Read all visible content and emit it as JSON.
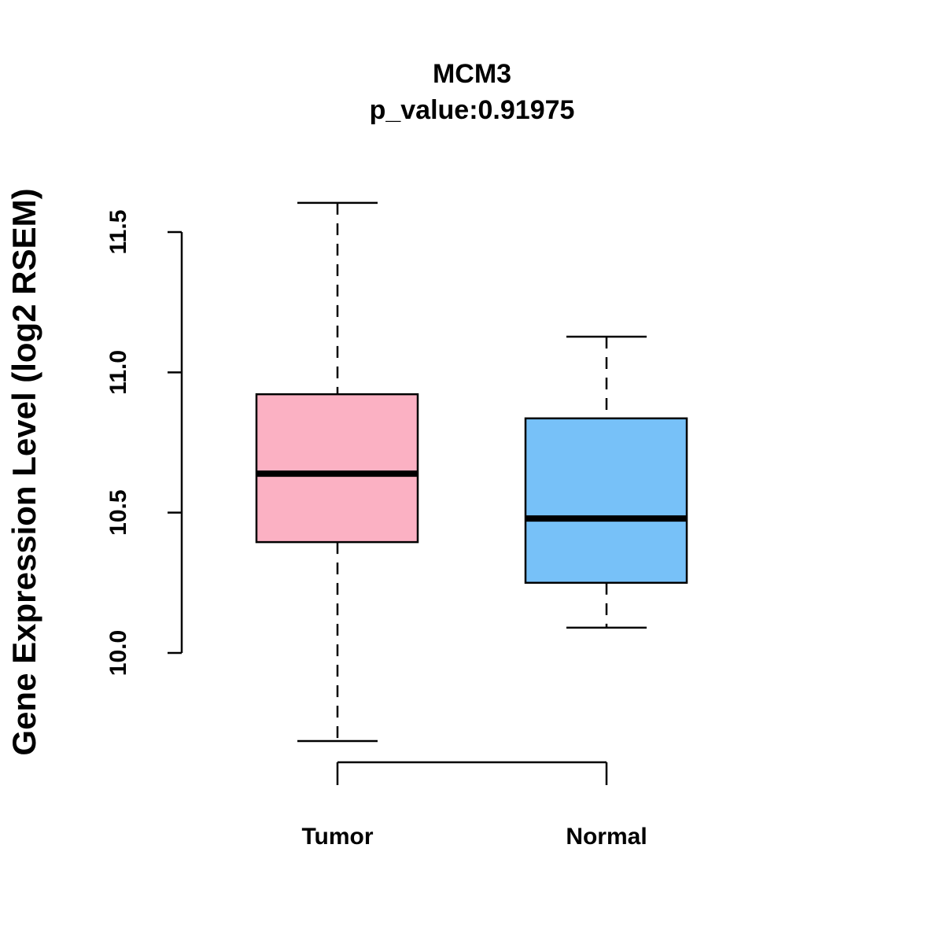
{
  "chart_data": {
    "type": "boxplot",
    "title": "MCM3",
    "subtitle": "p_value:0.91975",
    "xlabel": "",
    "ylabel": "Gene Expression Level (log2 RSEM)",
    "ylim": [
      9.6,
      11.7
    ],
    "yticks": [
      10.0,
      10.5,
      11.0,
      11.5
    ],
    "ytick_labels": [
      "10.0",
      "10.5",
      "11.0",
      "11.5"
    ],
    "grid": false,
    "categories": [
      "Tumor",
      "Normal"
    ],
    "series": [
      {
        "name": "Tumor",
        "color": "#FBB1C3",
        "whisker_low": 9.686,
        "q1": 10.395,
        "median": 10.639,
        "q3": 10.922,
        "whisker_high": 11.604
      },
      {
        "name": "Normal",
        "color": "#77C1F8",
        "whisker_low": 10.09,
        "q1": 10.25,
        "median": 10.479,
        "q3": 10.836,
        "whisker_high": 11.127
      }
    ]
  }
}
